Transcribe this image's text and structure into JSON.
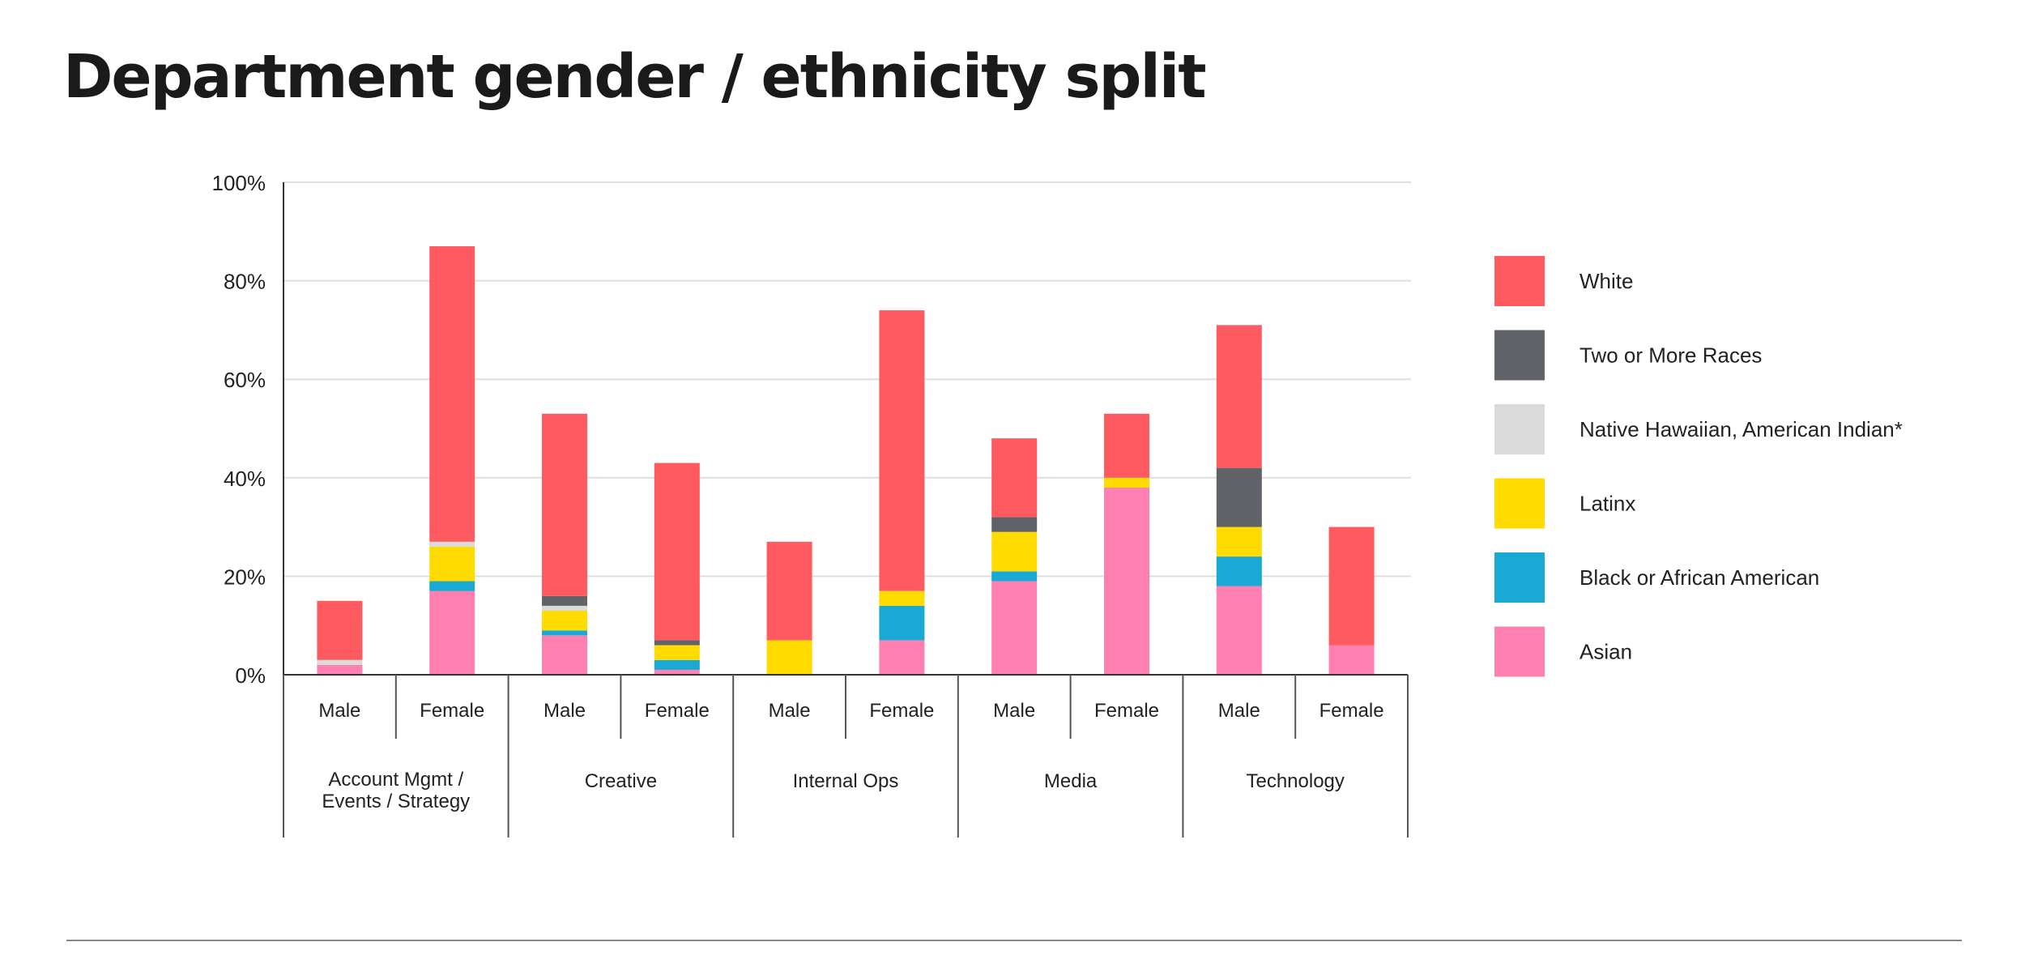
{
  "title": "Department gender / ethnicity split",
  "chart_data": {
    "type": "bar",
    "stacked": true,
    "ylim": [
      0,
      100
    ],
    "yticks": [
      "0%",
      "20%",
      "40%",
      "60%",
      "80%",
      "100%"
    ],
    "grid": true,
    "legend_position": "right",
    "groups": [
      "Account Mgmt / Events / Strategy",
      "Creative",
      "Internal Ops",
      "Media",
      "Technology"
    ],
    "categories": [
      "Male",
      "Female",
      "Male",
      "Female",
      "Male",
      "Female",
      "Male",
      "Female",
      "Male",
      "Female"
    ],
    "series": [
      {
        "name": "Asian",
        "color": "#ff80b0",
        "values": [
          2,
          17,
          8,
          1,
          0,
          7,
          19,
          38,
          18,
          6
        ]
      },
      {
        "name": "Black or African American",
        "color": "#1aa8d4",
        "values": [
          0,
          2,
          1,
          2,
          0,
          7,
          2,
          0,
          6,
          0
        ]
      },
      {
        "name": "Latinx",
        "color": "#ffdb00",
        "values": [
          0,
          7,
          4,
          3,
          7,
          3,
          8,
          2,
          6,
          0
        ]
      },
      {
        "name": "Native Hawaiian, American Indian*",
        "color": "#dadada",
        "values": [
          1,
          1,
          1,
          0,
          0,
          0,
          0,
          0,
          0,
          0
        ]
      },
      {
        "name": "Two or More Races",
        "color": "#5f6368",
        "values": [
          0,
          0,
          2,
          1,
          0,
          0,
          3,
          0,
          12,
          0
        ]
      },
      {
        "name": "White",
        "color": "#ff5a60",
        "values": [
          12,
          60,
          37,
          36,
          20,
          57,
          16,
          13,
          29,
          24
        ]
      }
    ],
    "legend_order": [
      "White",
      "Two or More Races",
      "Native Hawaiian, American Indian*",
      "Latinx",
      "Black or African American",
      "Asian"
    ]
  }
}
